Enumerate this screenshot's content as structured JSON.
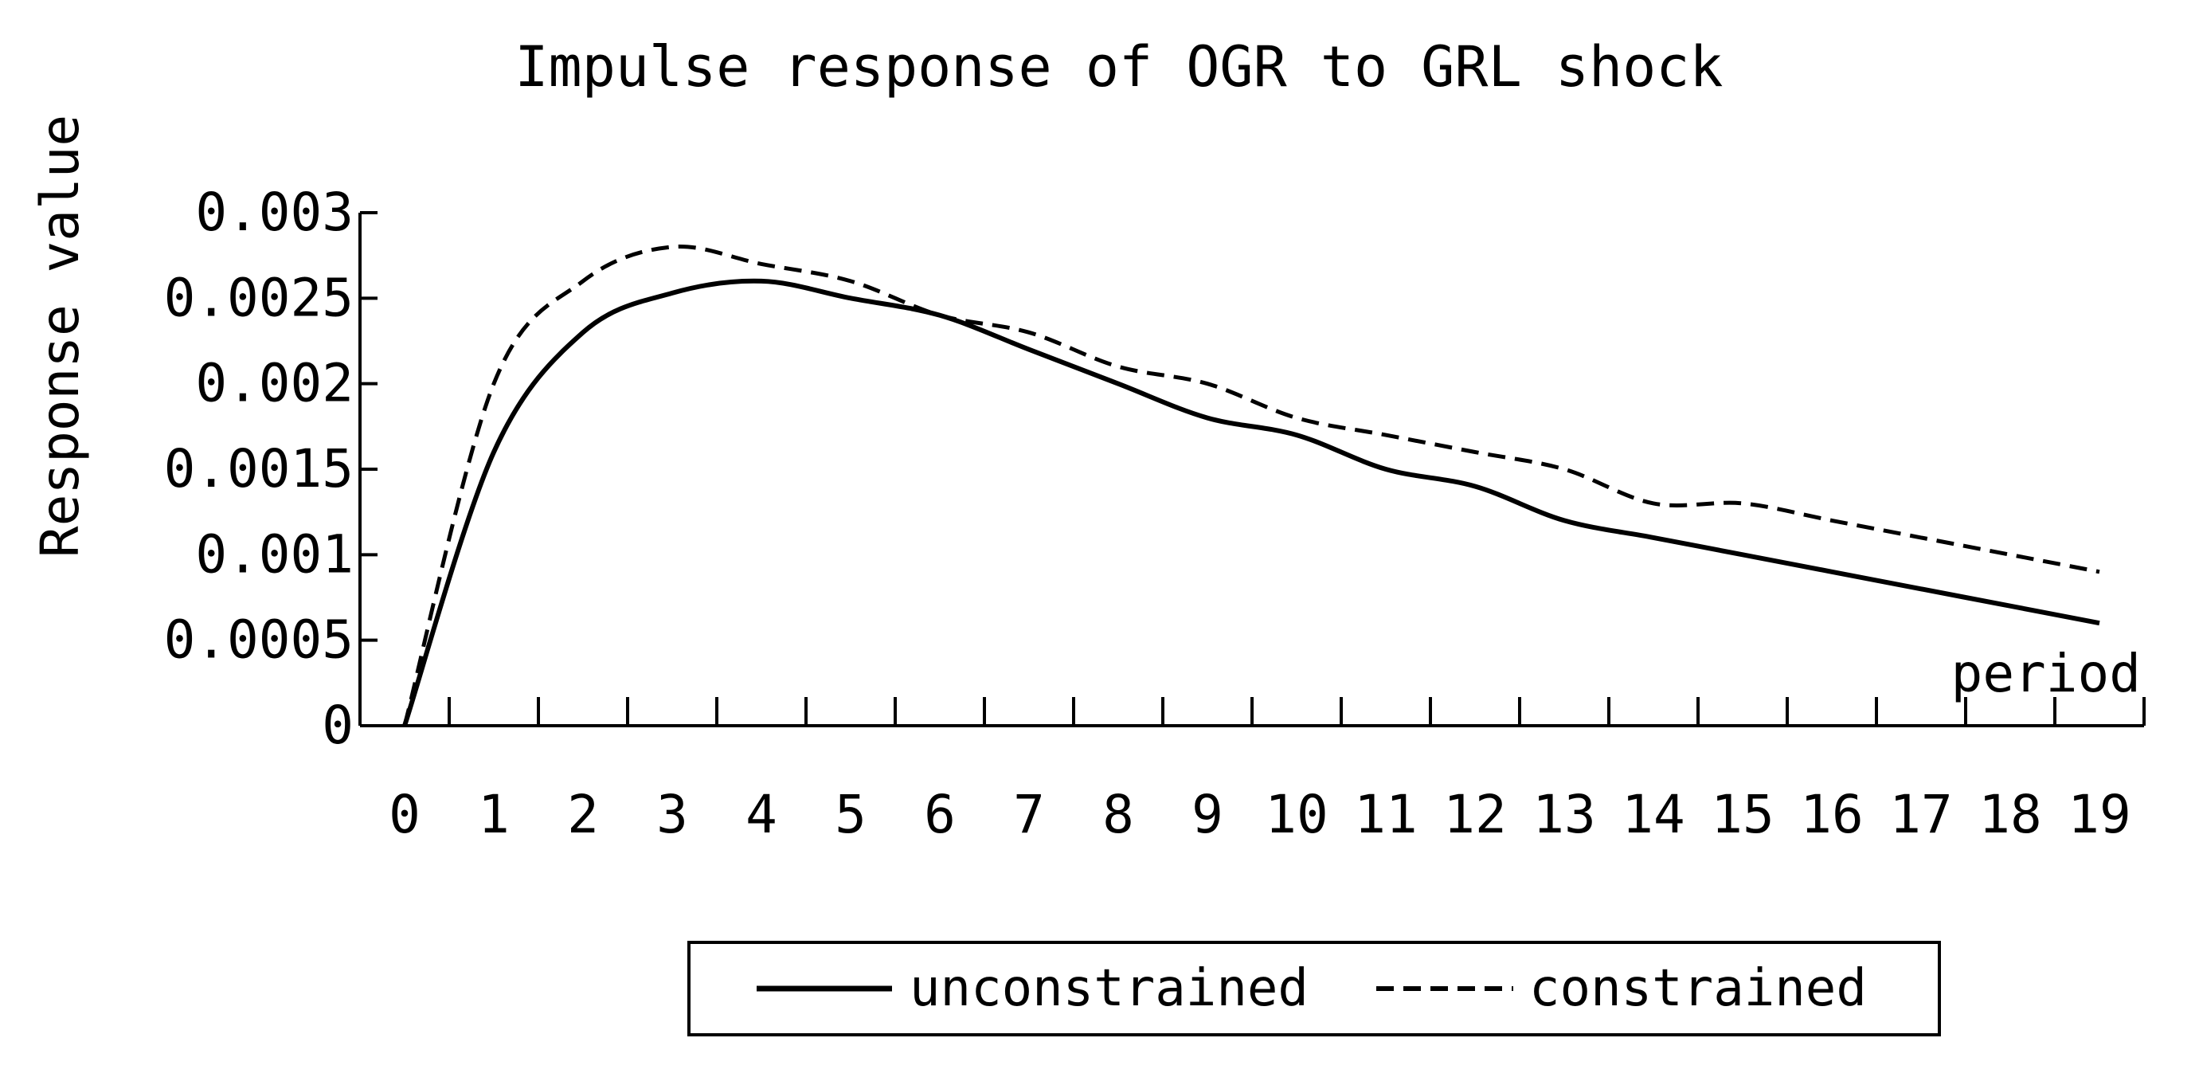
{
  "chart_data": {
    "type": "line",
    "title": "Impulse response of OGR to GRL shock",
    "xlabel": "period",
    "ylabel": "Response value",
    "x": [
      0,
      1,
      2,
      3,
      4,
      5,
      6,
      7,
      8,
      9,
      10,
      11,
      12,
      13,
      14,
      15,
      16,
      17,
      18,
      19
    ],
    "x_tick_labels": [
      "0",
      "1",
      "2",
      "3",
      "4",
      "5",
      "6",
      "7",
      "8",
      "9",
      "10",
      "11",
      "12",
      "13",
      "14",
      "15",
      "16",
      "17",
      "18",
      "19"
    ],
    "y_tick_values": [
      0,
      0.0005,
      0.001,
      0.0015,
      0.002,
      0.0025,
      0.003
    ],
    "y_tick_labels": [
      "0",
      "0.0005",
      "0.001",
      "0.0015",
      "0.002",
      "0.0025",
      "0.003"
    ],
    "ylim": [
      0,
      0.003
    ],
    "xlim": [
      0,
      19
    ],
    "grid": false,
    "legend_position": "bottom",
    "series": [
      {
        "name": "unconstrained",
        "line_style": "solid",
        "color": "#000000",
        "values": [
          0,
          0.0016,
          0.0023,
          0.00253,
          0.0026,
          0.0025,
          0.0024,
          0.0022,
          0.002,
          0.0018,
          0.0017,
          0.0015,
          0.0014,
          0.0012,
          0.0011,
          0.001,
          0.0009,
          0.0008,
          0.0007,
          0.0006
        ]
      },
      {
        "name": "constrained",
        "line_style": "dashed",
        "color": "#000000",
        "values": [
          0,
          0.002,
          0.0026,
          0.0028,
          0.0027,
          0.0026,
          0.0024,
          0.0023,
          0.0021,
          0.002,
          0.0018,
          0.0017,
          0.0016,
          0.0015,
          0.0013,
          0.0013,
          0.0012,
          0.0011,
          0.001,
          0.0009
        ]
      }
    ]
  }
}
